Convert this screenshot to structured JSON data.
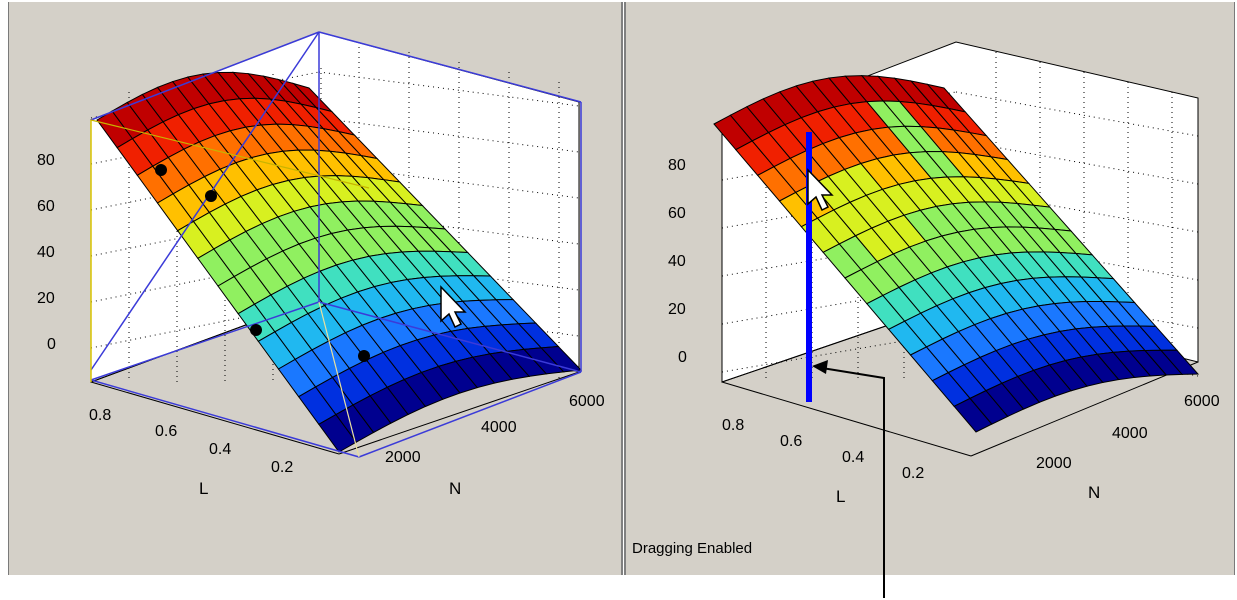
{
  "left_plot": {
    "z_ticks": [
      "80",
      "60",
      "40",
      "20",
      "0"
    ],
    "l_ticks": [
      "0.8",
      "0.6",
      "0.4",
      "0.2"
    ],
    "n_ticks": [
      "2000",
      "4000",
      "6000"
    ],
    "l_axis_label": "L",
    "n_axis_label": "N"
  },
  "right_plot": {
    "z_ticks": [
      "80",
      "60",
      "40",
      "20",
      "0"
    ],
    "l_ticks": [
      "0.8",
      "0.6",
      "0.4",
      "0.2"
    ],
    "n_ticks": [
      "2000",
      "4000",
      "6000"
    ],
    "l_axis_label": "L",
    "n_axis_label": "N",
    "status_text": "Dragging Enabled"
  },
  "colors": {
    "selection_box": "#3b3bd8",
    "drag_line": "#0000ff",
    "colormap": [
      "#00008f",
      "#0030e0",
      "#1a78ff",
      "#20b8f0",
      "#40e0c0",
      "#90f060",
      "#d8f020",
      "#ffc000",
      "#ff7000",
      "#f02000",
      "#c00000"
    ]
  },
  "icons": {
    "cursor": "arrow-cursor-icon"
  }
}
